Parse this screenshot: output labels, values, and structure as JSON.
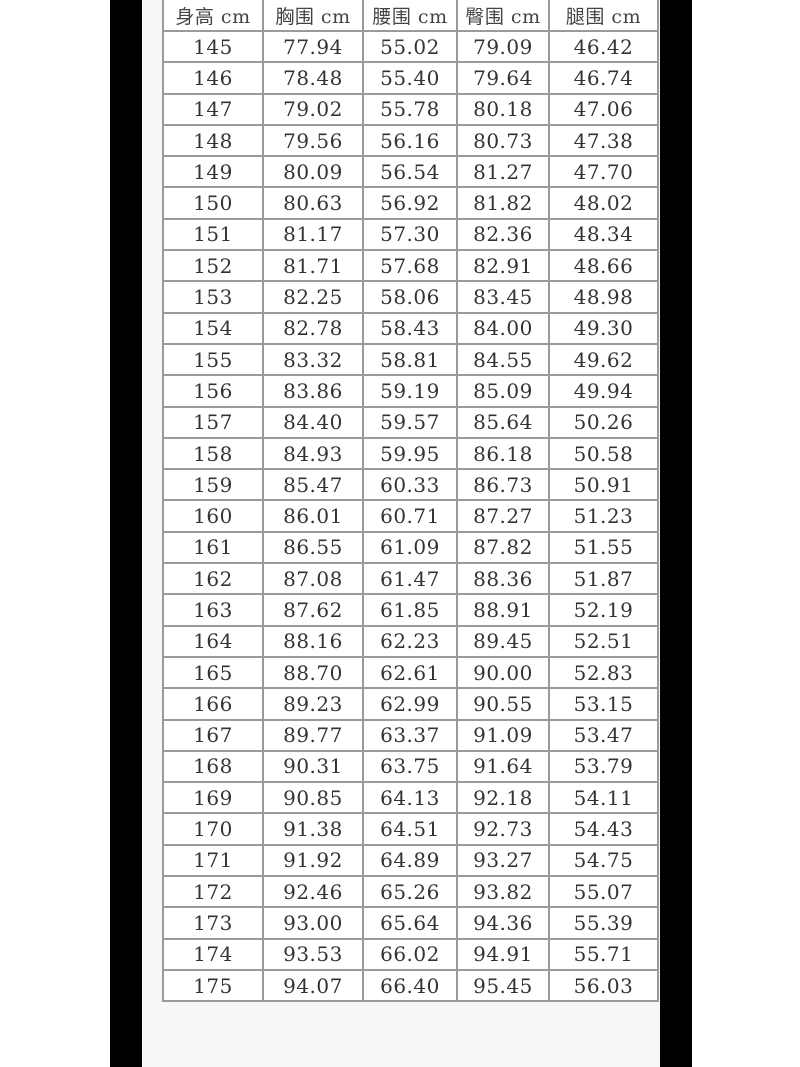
{
  "table": {
    "headers": [
      "身高 cm",
      "胸围 cm",
      "腰围 cm",
      "臀围 cm",
      "腿围 cm"
    ],
    "rows": [
      [
        "145",
        "77.94",
        "55.02",
        "79.09",
        "46.42"
      ],
      [
        "146",
        "78.48",
        "55.40",
        "79.64",
        "46.74"
      ],
      [
        "147",
        "79.02",
        "55.78",
        "80.18",
        "47.06"
      ],
      [
        "148",
        "79.56",
        "56.16",
        "80.73",
        "47.38"
      ],
      [
        "149",
        "80.09",
        "56.54",
        "81.27",
        "47.70"
      ],
      [
        "150",
        "80.63",
        "56.92",
        "81.82",
        "48.02"
      ],
      [
        "151",
        "81.17",
        "57.30",
        "82.36",
        "48.34"
      ],
      [
        "152",
        "81.71",
        "57.68",
        "82.91",
        "48.66"
      ],
      [
        "153",
        "82.25",
        "58.06",
        "83.45",
        "48.98"
      ],
      [
        "154",
        "82.78",
        "58.43",
        "84.00",
        "49.30"
      ],
      [
        "155",
        "83.32",
        "58.81",
        "84.55",
        "49.62"
      ],
      [
        "156",
        "83.86",
        "59.19",
        "85.09",
        "49.94"
      ],
      [
        "157",
        "84.40",
        "59.57",
        "85.64",
        "50.26"
      ],
      [
        "158",
        "84.93",
        "59.95",
        "86.18",
        "50.58"
      ],
      [
        "159",
        "85.47",
        "60.33",
        "86.73",
        "50.91"
      ],
      [
        "160",
        "86.01",
        "60.71",
        "87.27",
        "51.23"
      ],
      [
        "161",
        "86.55",
        "61.09",
        "87.82",
        "51.55"
      ],
      [
        "162",
        "87.08",
        "61.47",
        "88.36",
        "51.87"
      ],
      [
        "163",
        "87.62",
        "61.85",
        "88.91",
        "52.19"
      ],
      [
        "164",
        "88.16",
        "62.23",
        "89.45",
        "52.51"
      ],
      [
        "165",
        "88.70",
        "62.61",
        "90.00",
        "52.83"
      ],
      [
        "166",
        "89.23",
        "62.99",
        "90.55",
        "53.15"
      ],
      [
        "167",
        "89.77",
        "63.37",
        "91.09",
        "53.47"
      ],
      [
        "168",
        "90.31",
        "63.75",
        "91.64",
        "53.79"
      ],
      [
        "169",
        "90.85",
        "64.13",
        "92.18",
        "54.11"
      ],
      [
        "170",
        "91.38",
        "64.51",
        "92.73",
        "54.43"
      ],
      [
        "171",
        "91.92",
        "64.89",
        "93.27",
        "54.75"
      ],
      [
        "172",
        "92.46",
        "65.26",
        "93.82",
        "55.07"
      ],
      [
        "173",
        "93.00",
        "65.64",
        "94.36",
        "55.39"
      ],
      [
        "174",
        "93.53",
        "66.02",
        "94.91",
        "55.71"
      ],
      [
        "175",
        "94.07",
        "66.40",
        "95.45",
        "56.03"
      ]
    ]
  }
}
